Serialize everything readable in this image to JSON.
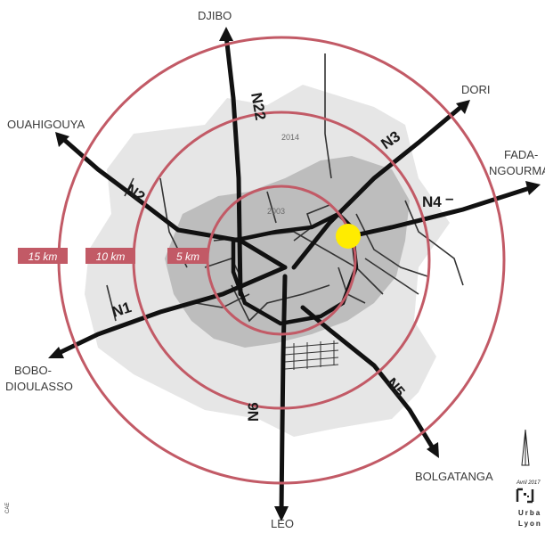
{
  "cities": {
    "djibo": "DJIBO",
    "dori": "DORI",
    "ouahigouya": "OUAHIGOUYA",
    "fada_1": "FADA-",
    "fada_2": "NGOURMA",
    "bobo_1": "BOBO-",
    "bobo_2": "DIOULASSO",
    "bolgatanga": "BOLGATANGA",
    "leo": "LEO"
  },
  "roads": {
    "n1": "N1",
    "n2": "N2",
    "n3": "N3",
    "n4": "N4",
    "n5": "N5",
    "n6": "N6",
    "n22": "N22"
  },
  "rings": {
    "r5": "5 km",
    "r10": "10 km",
    "r15": "15 km"
  },
  "years": {
    "y2014": "2014",
    "y2003": "2003"
  },
  "credit": {
    "date": "Avril 2017",
    "line1": "Urba",
    "line2": "Lyon",
    "side": "CAE"
  },
  "colors": {
    "ring": "#c25a66",
    "ring_label_bg": "#c25a66",
    "outer_urban": "#e6e6e6",
    "inner_urban": "#bdbdbd",
    "marker": "#ffec00"
  }
}
